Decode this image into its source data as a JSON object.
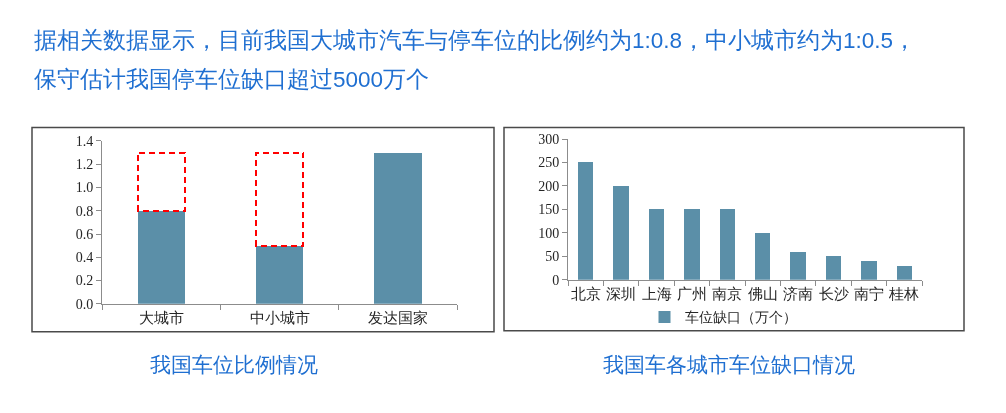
{
  "chart_data": [
    {
      "type": "other",
      "title": "据相关数据显示，目前我国大城市汽车与停车位的比例约为1:0.8，中小城市约为1:0.5，保守估计我国停车位缺口超过5000万个"
    },
    {
      "type": "bar",
      "title": "我国车位比例情况",
      "categories": [
        "大城市",
        "中小城市",
        "发达国家"
      ],
      "stacked": true,
      "series": [
        {
          "color": "#5b8fa8",
          "values": [
            0.8,
            0.5,
            1.3
          ]
        },
        {
          "color": "#ff0000",
          "line_style": "dashed",
          "values": [
            0.5,
            0.8,
            null
          ]
        }
      ],
      "ylim": [
        0,
        1.4
      ],
      "yticks": [
        {
          "value": 0,
          "label": "0.0"
        },
        0.2,
        0.4,
        0.6,
        0.8,
        {
          "value": 1,
          "label": "1.0"
        },
        1.2,
        1.4
      ]
    },
    {
      "type": "bar",
      "title": "我国车各城市车位缺口情况",
      "categories": [
        "北京",
        "深圳",
        "上海",
        "广州",
        "南京",
        "佛山",
        "济南",
        "长沙",
        "南宁",
        "桂林"
      ],
      "series": [
        {
          "name": "车位缺口（万个）",
          "color": "#5b8fa8",
          "values": [
            250,
            200,
            150,
            150,
            150,
            100,
            60,
            50,
            40,
            30
          ]
        }
      ],
      "ylim": [
        0,
        300
      ],
      "yticks": [
        0,
        50,
        100,
        150,
        200,
        250,
        300
      ],
      "legend": "bottom"
    }
  ]
}
